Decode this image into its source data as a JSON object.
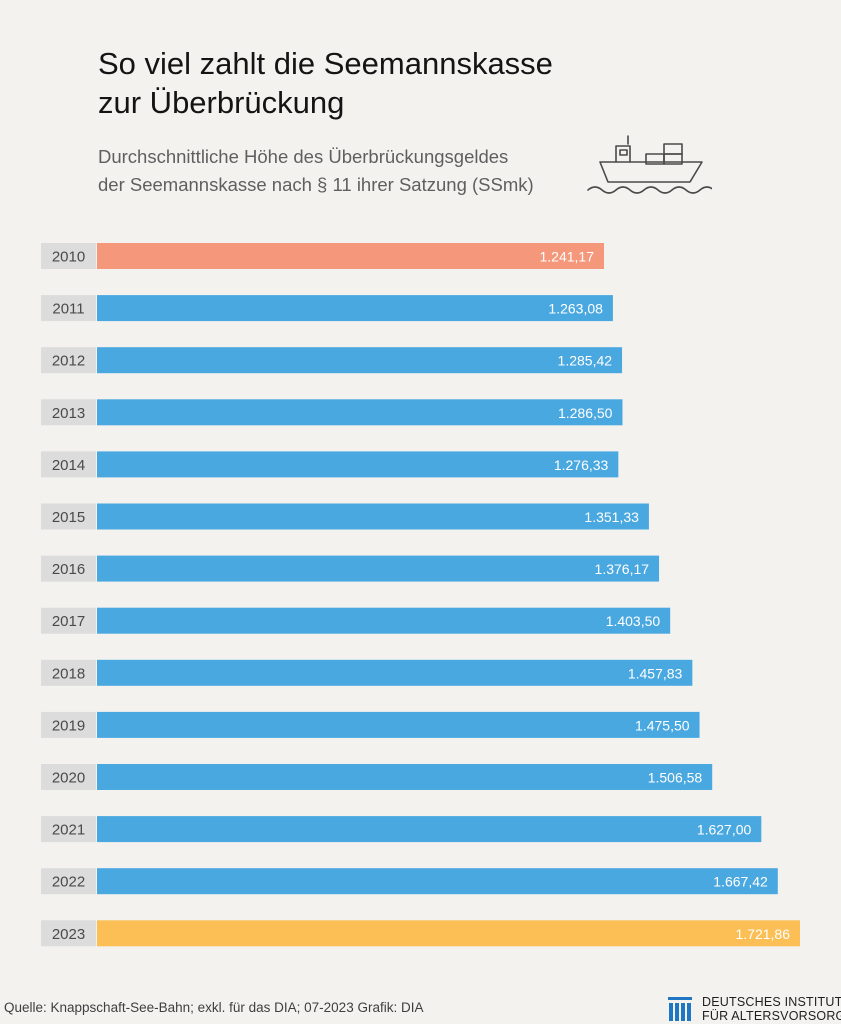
{
  "header": {
    "title": "So viel zahlt die Seemannskasse\nzur Überbrückung",
    "subtitle": "Durchschnittliche Höhe des Überbrückungsgeldes\nder Seemannskasse nach § 11 ihrer Satzung (SSmk)"
  },
  "icons": {
    "ship": "cargo-ship-icon",
    "logo": "institute-logo-icon"
  },
  "colors": {
    "background": "#f3f2ef",
    "bar_default": "#4aa8e0",
    "bar_first": "#f4977a",
    "bar_last": "#fbbf55",
    "year_box": "#dcdcdc"
  },
  "chart_data": {
    "type": "bar",
    "orientation": "horizontal",
    "categories": [
      "2010",
      "2011",
      "2012",
      "2013",
      "2014",
      "2015",
      "2016",
      "2017",
      "2018",
      "2019",
      "2020",
      "2021",
      "2022",
      "2023"
    ],
    "values": [
      1241.17,
      1263.08,
      1285.42,
      1286.5,
      1276.33,
      1351.33,
      1376.17,
      1403.5,
      1457.83,
      1475.5,
      1506.58,
      1627.0,
      1667.42,
      1721.86
    ],
    "labels": [
      "1.241,17",
      "1.263,08",
      "1.285,42",
      "1.286,50",
      "1.276,33",
      "1.351,33",
      "1.376,17",
      "1.403,50",
      "1.457,83",
      "1.475,50",
      "1.506,58",
      "1.627,00",
      "1.667,42",
      "1.721,86"
    ],
    "title": "So viel zahlt die Seemannskasse zur Überbrückung",
    "xlabel": "",
    "ylabel": "",
    "grid": false
  },
  "footer": {
    "source": "Quelle: Knappschaft-See-Bahn; exkl. für das DIA; 07-2023  Grafik: DIA",
    "logo_line1": "DEUTSCHES INSTITUT",
    "logo_line2": "FÜR ALTERSVORSORGE"
  }
}
